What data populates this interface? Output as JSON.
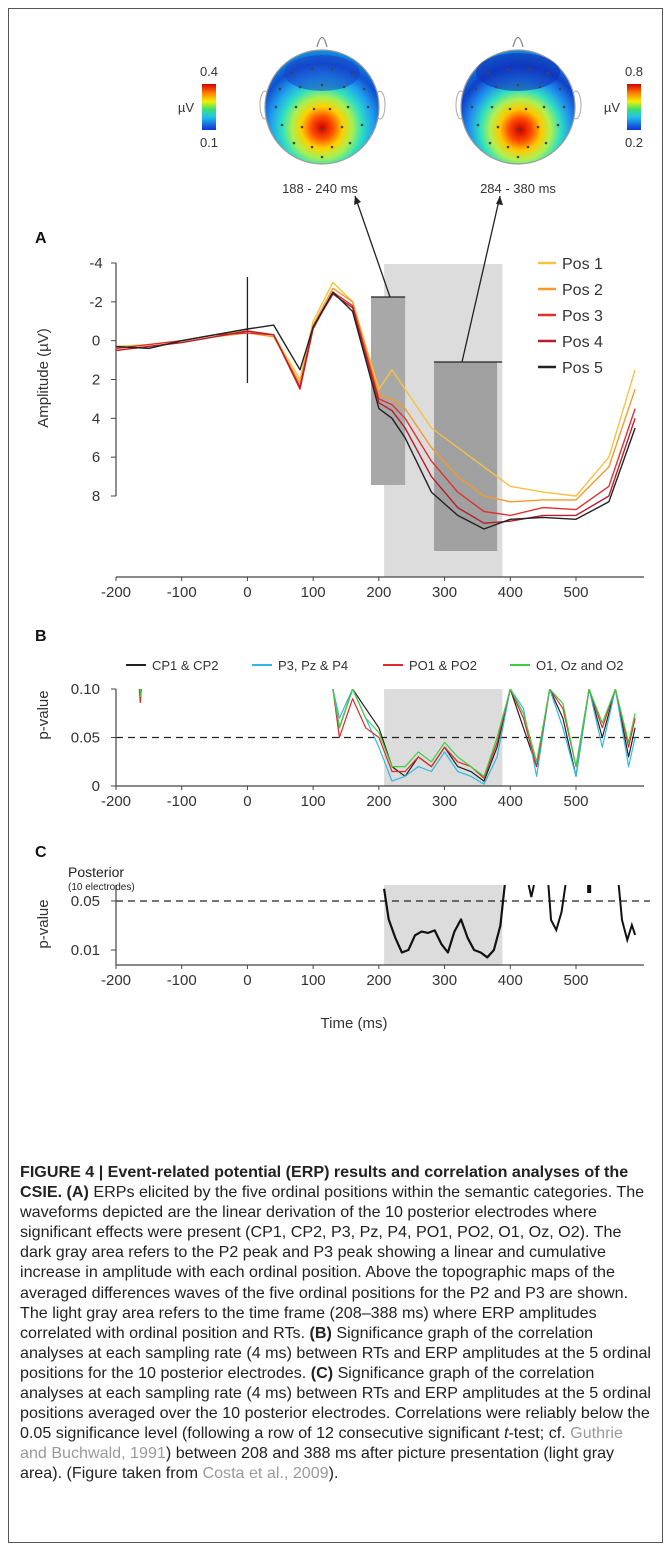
{
  "topomaps": [
    {
      "scale_max": "0.4",
      "scale_min": "0.1",
      "unit": "µV",
      "window": "188 - 240 ms"
    },
    {
      "scale_max": "0.8",
      "scale_min": "0.2",
      "unit": "µV",
      "window": "284 - 380 ms"
    }
  ],
  "panel_a": {
    "letter": "A",
    "ylabel": "Amplitude (µV)"
  },
  "panel_b": {
    "letter": "B",
    "ylabel": "p-value"
  },
  "panel_c": {
    "letter": "C",
    "ylabel": "p-value",
    "annotation": "Posterior",
    "annotation_sub": "(10 electrodes)",
    "xlabel": "Time (ms)"
  },
  "chart_data": [
    {
      "type": "line",
      "panel": "A",
      "ylabel": "Amplitude (µV)",
      "xlim": [
        -200,
        590
      ],
      "ylim_inverted": [
        -4,
        10
      ],
      "xticks": [
        "-200",
        "-100",
        "0",
        "100",
        "200",
        "300",
        "400",
        "500"
      ],
      "yticks": [
        "-4",
        "-2",
        "0",
        "2",
        "4",
        "6",
        "8"
      ],
      "legend_placement": "top-right",
      "shaded_windows": {
        "light_gray": [
          208,
          388
        ],
        "dark_gray": [
          [
            188,
            240
          ],
          [
            284,
            380
          ]
        ]
      },
      "series": [
        {
          "name": "Pos 1",
          "color": "#f5c242",
          "x": [
            -200,
            -150,
            -100,
            -50,
            0,
            40,
            80,
            100,
            130,
            160,
            200,
            220,
            240,
            280,
            320,
            360,
            400,
            450,
            500,
            550,
            590
          ],
          "y": [
            0.3,
            0.2,
            0,
            -0.3,
            -0.5,
            -0.3,
            2.0,
            -1.0,
            -3.0,
            -2.0,
            2.5,
            1.5,
            2.5,
            4.5,
            5.5,
            6.5,
            7.5,
            7.8,
            8.0,
            6.0,
            1.5
          ]
        },
        {
          "name": "Pos 2",
          "color": "#f39a2a",
          "x": [
            -200,
            -150,
            -100,
            -50,
            0,
            40,
            80,
            100,
            130,
            160,
            200,
            220,
            240,
            280,
            320,
            360,
            400,
            450,
            500,
            550,
            590
          ],
          "y": [
            0.5,
            0.3,
            0.1,
            -0.2,
            -0.4,
            -0.2,
            2.2,
            -0.8,
            -2.7,
            -2.0,
            2.8,
            3.0,
            3.5,
            5.5,
            7.0,
            8.0,
            8.3,
            8.2,
            8.2,
            6.5,
            2.5
          ]
        },
        {
          "name": "Pos 3",
          "color": "#e03030",
          "x": [
            -200,
            -150,
            -100,
            -50,
            0,
            40,
            80,
            100,
            130,
            160,
            200,
            220,
            240,
            280,
            320,
            360,
            400,
            450,
            500,
            550,
            590
          ],
          "y": [
            0.4,
            0.2,
            0,
            -0.3,
            -0.4,
            -0.3,
            2.5,
            -0.6,
            -2.5,
            -1.8,
            3.0,
            3.3,
            4.0,
            6.2,
            7.8,
            8.8,
            9.0,
            8.6,
            8.7,
            7.5,
            3.5
          ]
        },
        {
          "name": "Pos 4",
          "color": "#b51d2e",
          "x": [
            -200,
            -150,
            -100,
            -50,
            0,
            40,
            80,
            100,
            130,
            160,
            200,
            220,
            240,
            280,
            320,
            360,
            400,
            450,
            500,
            550,
            590
          ],
          "y": [
            0.5,
            0.3,
            0.1,
            -0.2,
            -0.5,
            -0.3,
            2.4,
            -0.7,
            -2.4,
            -1.7,
            3.2,
            3.6,
            4.5,
            7.0,
            8.6,
            9.4,
            9.3,
            9.0,
            9.0,
            8.0,
            4.0
          ]
        },
        {
          "name": "Pos 5",
          "color": "#222222",
          "x": [
            -200,
            -150,
            -100,
            -50,
            0,
            40,
            80,
            100,
            130,
            160,
            200,
            220,
            240,
            280,
            320,
            360,
            400,
            450,
            500,
            550,
            590
          ],
          "y": [
            0.3,
            0.4,
            0,
            -0.3,
            -0.6,
            -0.8,
            1.5,
            -0.7,
            -2.5,
            -1.5,
            3.5,
            4.0,
            5.0,
            7.8,
            9.0,
            9.7,
            9.2,
            9.1,
            9.2,
            8.3,
            4.5
          ]
        }
      ]
    },
    {
      "type": "line",
      "panel": "B",
      "ylabel": "p-value",
      "xlim": [
        -200,
        590
      ],
      "ylim": [
        0,
        0.1
      ],
      "xticks": [
        "-200",
        "-100",
        "0",
        "100",
        "200",
        "300",
        "400",
        "500"
      ],
      "yticks": [
        "0",
        "0.05",
        "0.10"
      ],
      "threshold": 0.05,
      "shaded_window": [
        208,
        388
      ],
      "legend_placement": "top",
      "series": [
        {
          "name": "CP1 & CP2",
          "color": "#222222",
          "x": [
            130,
            140,
            160,
            180,
            200,
            220,
            240,
            260,
            280,
            300,
            320,
            340,
            360,
            380,
            400,
            420,
            440,
            460,
            480,
            500,
            520,
            540,
            560,
            580,
            590
          ],
          "y": [
            0.1,
            0.06,
            0.1,
            0.08,
            0.06,
            0.02,
            0.01,
            0.03,
            0.02,
            0.04,
            0.02,
            0.015,
            0.005,
            0.04,
            0.1,
            0.06,
            0.02,
            0.1,
            0.07,
            0.01,
            0.1,
            0.05,
            0.1,
            0.03,
            0.06
          ]
        },
        {
          "name": "P3, Pz & P4",
          "color": "#31b8e6",
          "x": [
            130,
            140,
            160,
            180,
            200,
            220,
            240,
            260,
            280,
            300,
            320,
            340,
            360,
            380,
            400,
            420,
            440,
            460,
            480,
            500,
            520,
            540,
            560,
            580,
            590
          ],
          "y": [
            0.1,
            0.07,
            0.1,
            0.07,
            0.04,
            0.005,
            0.01,
            0.02,
            0.015,
            0.035,
            0.015,
            0.01,
            0.002,
            0.03,
            0.1,
            0.08,
            0.01,
            0.1,
            0.06,
            0.01,
            0.1,
            0.04,
            0.1,
            0.02,
            0.05
          ]
        },
        {
          "name": "PO1 & PO2",
          "color": "#e02a2a",
          "x": [
            130,
            140,
            160,
            180,
            200,
            220,
            240,
            260,
            280,
            300,
            320,
            340,
            360,
            380,
            400,
            420,
            440,
            460,
            480,
            500,
            520,
            540,
            560,
            580,
            590
          ],
          "y": [
            0.1,
            0.05,
            0.09,
            0.06,
            0.05,
            0.015,
            0.015,
            0.03,
            0.02,
            0.04,
            0.025,
            0.02,
            0.008,
            0.045,
            0.1,
            0.07,
            0.02,
            0.1,
            0.08,
            0.02,
            0.1,
            0.06,
            0.1,
            0.04,
            0.07
          ]
        },
        {
          "name": "O1, Oz and O2",
          "color": "#3fce3f",
          "x": [
            130,
            140,
            160,
            180,
            200,
            220,
            240,
            260,
            280,
            300,
            320,
            340,
            360,
            380,
            400,
            420,
            440,
            460,
            480,
            500,
            520,
            540,
            560,
            580,
            590
          ],
          "y": [
            0.1,
            0.06,
            0.1,
            0.07,
            0.055,
            0.02,
            0.02,
            0.035,
            0.025,
            0.045,
            0.03,
            0.02,
            0.01,
            0.05,
            0.1,
            0.075,
            0.025,
            0.1,
            0.085,
            0.02,
            0.1,
            0.065,
            0.1,
            0.045,
            0.075
          ]
        }
      ]
    },
    {
      "type": "line",
      "panel": "C",
      "ylabel": "p-value",
      "xlabel": "Time (ms)",
      "xlim": [
        -200,
        590
      ],
      "ylim": [
        0,
        0.065
      ],
      "xticks": [
        "-200",
        "-100",
        "0",
        "100",
        "200",
        "300",
        "400",
        "500"
      ],
      "yticks": [
        "0.01",
        "0.05"
      ],
      "threshold": 0.05,
      "shaded_window": [
        208,
        388
      ],
      "series": [
        {
          "name": "Posterior (10 electrodes)",
          "color": "#111111",
          "x": [
            208,
            215,
            225,
            235,
            245,
            255,
            265,
            275,
            285,
            295,
            305,
            315,
            325,
            335,
            345,
            355,
            365,
            375,
            385,
            392
          ],
          "y": [
            0.06,
            0.035,
            0.02,
            0.008,
            0.01,
            0.022,
            0.025,
            0.024,
            0.026,
            0.015,
            0.008,
            0.025,
            0.035,
            0.02,
            0.01,
            0.008,
            0.004,
            0.01,
            0.03,
            0.065
          ]
        }
      ]
    }
  ],
  "caption": {
    "title": "FIGURE 4 | Event-related potential (ERP) results and correlation analyses of the CSIE.",
    "a_label": "(A)",
    "a_text": " ERPs elicited by the five ordinal positions within the semantic categories. The waveforms depicted are the linear derivation of the 10 posterior electrodes where significant effects were present (CP1, CP2, P3, Pz, P4, PO1, PO2, O1, Oz, O2). The dark gray area refers to the P2 peak and P3 peak showing a linear and cumulative increase in amplitude with each ordinal position. Above the topographic maps of the averaged differences waves of the five ordinal positions for the P2 and P3 are shown. The light gray area refers to the time frame (208–388 ms) where ERP amplitudes correlated with ordinal position and RTs. ",
    "b_label": "(B)",
    "b_text": " Significance graph of the correlation analyses at each sampling rate (4 ms) between RTs and ERP amplitudes at the 5 ordinal positions for the 10 posterior electrodes. ",
    "c_label": "(C)",
    "c_text": " Significance graph of the correlation analyses at each sampling rate (4 ms) between RTs and ERP amplitudes at the 5 ordinal positions averaged over the 10 posterior electrodes. Correlations were reliably below the 0.05 significance level (following a row of 12 consecutive significant ",
    "t_italic": "t",
    "c_text2": "-test; cf. ",
    "ref1": "Guthrie and Buchwald, 1991",
    "c_text3": ") between 208 and 388 ms after picture presentation (light gray area). (Figure taken from ",
    "ref2": "Costa et al., 2009",
    "c_text4": ")."
  }
}
